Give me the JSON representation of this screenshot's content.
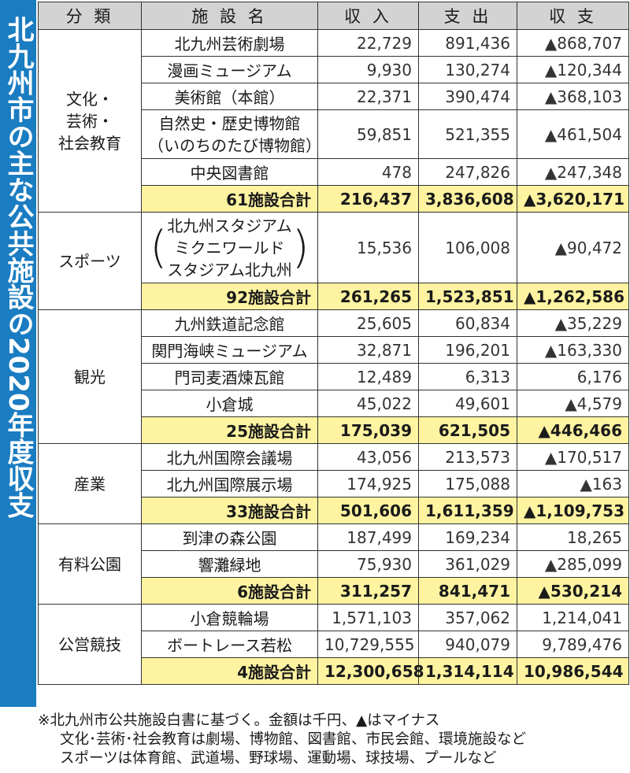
{
  "title": "北九州市の主な公共施設の2020年度収支",
  "headers": {
    "category": "分 類",
    "facility": "施 設 名",
    "income": "収 入",
    "expense": "支 出",
    "balance": "収 支"
  },
  "groups": {
    "culture": {
      "category": [
        "文化・",
        "芸術・",
        "社会教育"
      ],
      "rows": [
        {
          "name": "北九州芸術劇場",
          "income": "22,729",
          "expense": "891,436",
          "balance": "▲868,707"
        },
        {
          "name": "漫画ミュージアム",
          "income": "9,930",
          "expense": "130,274",
          "balance": "▲120,344"
        },
        {
          "name": "美術館（本館）",
          "income": "22,371",
          "expense": "390,474",
          "balance": "▲368,103"
        },
        {
          "name_l1": "自然史・歴史博物館",
          "name_l2": "（いのちのたび博物館）",
          "income": "59,851",
          "expense": "521,355",
          "balance": "▲461,504"
        },
        {
          "name": "中央図書館",
          "income": "478",
          "expense": "247,826",
          "balance": "▲247,348"
        }
      ],
      "total": {
        "name": "61施設合計",
        "income": "216,437",
        "expense": "3,836,608",
        "balance": "▲3,620,171"
      }
    },
    "sports": {
      "category": "スポーツ",
      "rows": [
        {
          "name_l1": "北九州スタジアム",
          "name_l2": "ミクニワールド",
          "name_l3": "スタジアム北九州",
          "paren_open": "(",
          "paren_close": ")",
          "income": "15,536",
          "expense": "106,008",
          "balance": "▲90,472"
        }
      ],
      "total": {
        "name": "92施設合計",
        "income": "261,265",
        "expense": "1,523,851",
        "balance": "▲1,262,586"
      }
    },
    "tourism": {
      "category": "観光",
      "rows": [
        {
          "name": "九州鉄道記念館",
          "income": "25,605",
          "expense": "60,834",
          "balance": "▲35,229"
        },
        {
          "name": "関門海峡ミュージアム",
          "income": "32,871",
          "expense": "196,201",
          "balance": "▲163,330"
        },
        {
          "name": "門司麦酒煉瓦館",
          "income": "12,489",
          "expense": "6,313",
          "balance": "6,176"
        },
        {
          "name": "小倉城",
          "income": "45,022",
          "expense": "49,601",
          "balance": "▲4,579"
        }
      ],
      "total": {
        "name": "25施設合計",
        "income": "175,039",
        "expense": "621,505",
        "balance": "▲446,466"
      }
    },
    "industry": {
      "category": "産業",
      "rows": [
        {
          "name": "北九州国際会議場",
          "income": "43,056",
          "expense": "213,573",
          "balance": "▲170,517"
        },
        {
          "name": "北九州国際展示場",
          "income": "174,925",
          "expense": "175,088",
          "balance": "▲163"
        }
      ],
      "total": {
        "name": "33施設合計",
        "income": "501,606",
        "expense": "1,611,359",
        "balance": "▲1,109,753"
      }
    },
    "parks": {
      "category": "有料公園",
      "rows": [
        {
          "name": "到津の森公園",
          "income": "187,499",
          "expense": "169,234",
          "balance": "18,265"
        },
        {
          "name": "響灘緑地",
          "income": "75,930",
          "expense": "361,029",
          "balance": "▲285,099"
        }
      ],
      "total": {
        "name": "6施設合計",
        "income": "311,257",
        "expense": "841,471",
        "balance": "▲530,214"
      }
    },
    "racing": {
      "category": "公営競技",
      "rows": [
        {
          "name": "小倉競輪場",
          "income": "1,571,103",
          "expense": "357,062",
          "balance": "1,214,041"
        },
        {
          "name": "ボートレース若松",
          "income": "10,729,555",
          "expense": "940,079",
          "balance": "9,789,476"
        }
      ],
      "total": {
        "name": "4施設合計",
        "income": "12,300,658",
        "expense": "1,314,114",
        "balance": "10,986,544"
      }
    }
  },
  "notes": [
    "※北九州市公共施設白書に基づく。金額は千円、▲はマイナス",
    "文化･芸術･社会教育は劇場、博物館、図書館、市民会館、環境施設など",
    "スポーツは体育館、武道場、野球場、運動場、球技場、プールなど"
  ]
}
